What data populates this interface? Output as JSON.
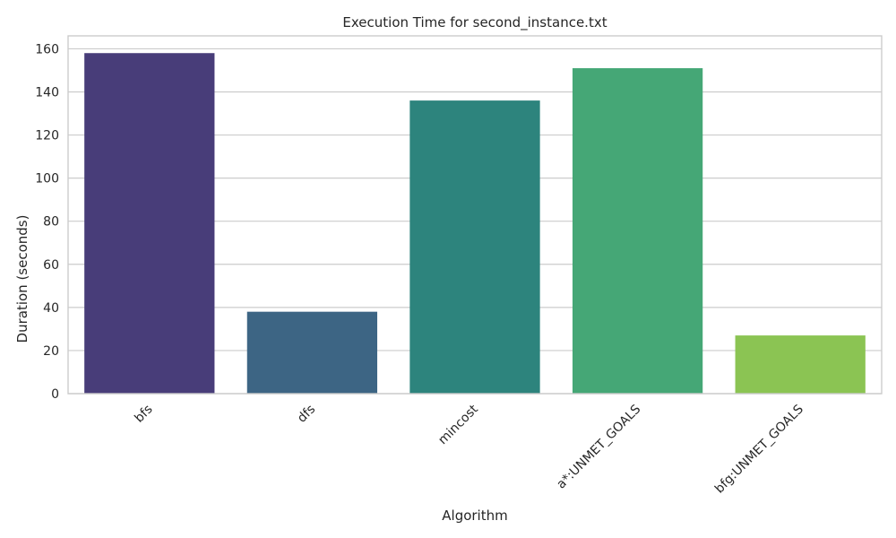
{
  "chart_data": {
    "type": "bar",
    "title": "Execution Time for second_instance.txt",
    "xlabel": "Algorithm",
    "ylabel": "Duration (seconds)",
    "categories": [
      "bfs",
      "dfs",
      "mincost",
      "a*:UNMET_GOALS",
      "bfg:UNMET_GOALS"
    ],
    "values": [
      158,
      38,
      136,
      151,
      27
    ],
    "colors": [
      "#483d79",
      "#3d6584",
      "#2d847d",
      "#45a776",
      "#8bc453"
    ],
    "ylim": [
      0,
      166
    ],
    "yticks": [
      0,
      20,
      40,
      60,
      80,
      100,
      120,
      140,
      160
    ],
    "grid": true,
    "legend": "none"
  }
}
